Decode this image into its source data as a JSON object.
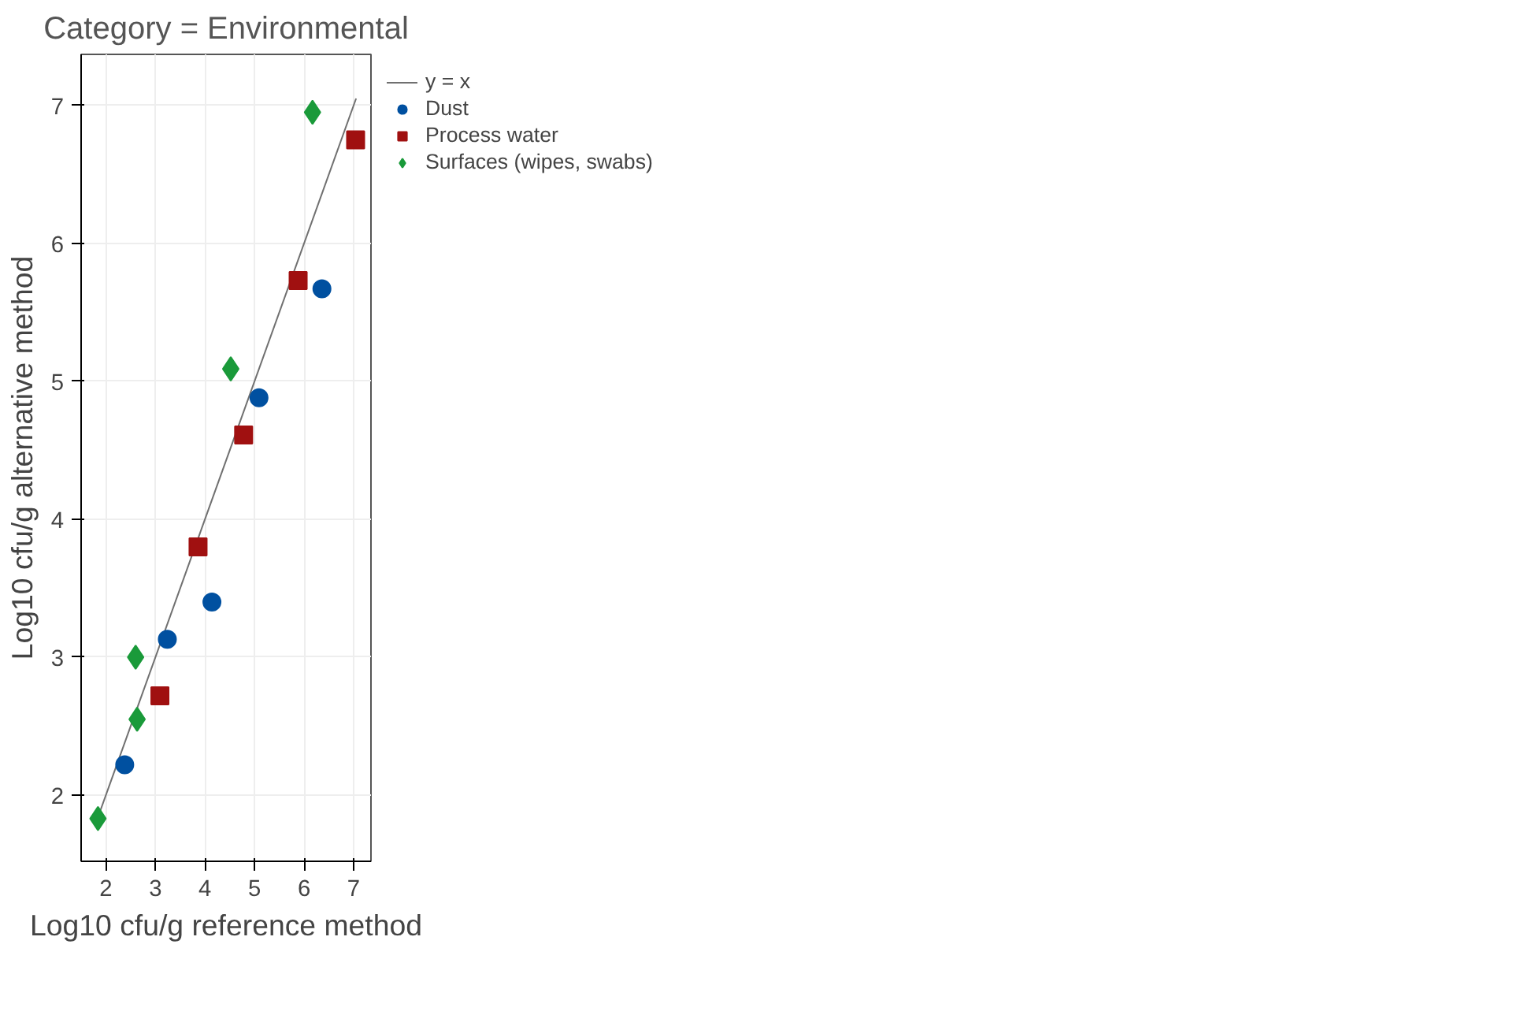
{
  "chart_data": {
    "type": "scatter",
    "title": "Category = Environmental",
    "xlabel": "Log10 cfu/g reference method",
    "ylabel": "Log10 cfu/g alternative method",
    "xlim": [
      1.5,
      7.35
    ],
    "ylim": [
      1.52,
      7.37
    ],
    "xticks": [
      2,
      3,
      4,
      5,
      6,
      7
    ],
    "yticks": [
      2,
      3,
      4,
      5,
      6,
      7
    ],
    "grid": true,
    "legend": "right",
    "series": [
      {
        "name": "y = x",
        "type": "line",
        "color": "#707070",
        "line_style": "solid",
        "marker": "none",
        "x": [
          1.85,
          7.05
        ],
        "values": [
          1.85,
          7.05
        ]
      },
      {
        "name": "Dust",
        "color": "#0050a0",
        "marker": "circle",
        "x": [
          2.38,
          3.24,
          4.14,
          5.09,
          6.36
        ],
        "values": [
          2.22,
          3.13,
          3.4,
          4.88,
          5.67
        ]
      },
      {
        "name": "Process water",
        "color": "#a01010",
        "marker": "square",
        "x": [
          3.09,
          3.86,
          4.78,
          5.88,
          7.04
        ],
        "values": [
          2.72,
          3.8,
          4.61,
          5.73,
          6.75
        ]
      },
      {
        "name": "Surfaces (wipes, swabs)",
        "color": "#1a9a3a",
        "marker": "diamond",
        "x": [
          1.84,
          2.6,
          2.63,
          4.52,
          6.17
        ],
        "values": [
          1.83,
          3.0,
          2.55,
          5.09,
          6.95
        ]
      }
    ]
  }
}
